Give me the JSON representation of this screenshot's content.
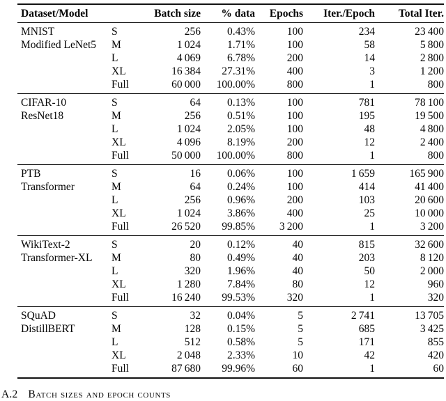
{
  "table": {
    "headers": {
      "dataset_model": "Dataset/Model",
      "batch_size": "Batch size",
      "pct_data": "% data",
      "epochs": "Epochs",
      "iter_per_epoch": "Iter./Epoch",
      "total_iter": "Total Iter."
    },
    "sections": [
      {
        "dataset": "MNIST",
        "model": "Modified LeNet5",
        "rows": [
          {
            "size": "S",
            "batch": "256",
            "pct": "0.43%",
            "epochs": "100",
            "iter": "234",
            "total": "23 400"
          },
          {
            "size": "M",
            "batch": "1 024",
            "pct": "1.71%",
            "epochs": "100",
            "iter": "58",
            "total": "5 800"
          },
          {
            "size": "L",
            "batch": "4 069",
            "pct": "6.78%",
            "epochs": "200",
            "iter": "14",
            "total": "2 800"
          },
          {
            "size": "XL",
            "batch": "16 384",
            "pct": "27.31%",
            "epochs": "400",
            "iter": "3",
            "total": "1 200"
          },
          {
            "size": "Full",
            "batch": "60 000",
            "pct": "100.00%",
            "epochs": "800",
            "iter": "1",
            "total": "800"
          }
        ]
      },
      {
        "dataset": "CIFAR-10",
        "model": "ResNet18",
        "rows": [
          {
            "size": "S",
            "batch": "64",
            "pct": "0.13%",
            "epochs": "100",
            "iter": "781",
            "total": "78 100"
          },
          {
            "size": "M",
            "batch": "256",
            "pct": "0.51%",
            "epochs": "100",
            "iter": "195",
            "total": "19 500"
          },
          {
            "size": "L",
            "batch": "1 024",
            "pct": "2.05%",
            "epochs": "100",
            "iter": "48",
            "total": "4 800"
          },
          {
            "size": "XL",
            "batch": "4 096",
            "pct": "8.19%",
            "epochs": "200",
            "iter": "12",
            "total": "2 400"
          },
          {
            "size": "Full",
            "batch": "50 000",
            "pct": "100.00%",
            "epochs": "800",
            "iter": "1",
            "total": "800"
          }
        ]
      },
      {
        "dataset": "PTB",
        "model": "Transformer",
        "rows": [
          {
            "size": "S",
            "batch": "16",
            "pct": "0.06%",
            "epochs": "100",
            "iter": "1 659",
            "total": "165 900"
          },
          {
            "size": "M",
            "batch": "64",
            "pct": "0.24%",
            "epochs": "100",
            "iter": "414",
            "total": "41 400"
          },
          {
            "size": "L",
            "batch": "256",
            "pct": "0.96%",
            "epochs": "200",
            "iter": "103",
            "total": "20 600"
          },
          {
            "size": "XL",
            "batch": "1 024",
            "pct": "3.86%",
            "epochs": "400",
            "iter": "25",
            "total": "10 000"
          },
          {
            "size": "Full",
            "batch": "26 520",
            "pct": "99.85%",
            "epochs": "3 200",
            "iter": "1",
            "total": "3 200"
          }
        ]
      },
      {
        "dataset": "WikiText-2",
        "model": "Transformer-XL",
        "rows": [
          {
            "size": "S",
            "batch": "20",
            "pct": "0.12%",
            "epochs": "40",
            "iter": "815",
            "total": "32 600"
          },
          {
            "size": "M",
            "batch": "80",
            "pct": "0.49%",
            "epochs": "40",
            "iter": "203",
            "total": "8 120"
          },
          {
            "size": "L",
            "batch": "320",
            "pct": "1.96%",
            "epochs": "40",
            "iter": "50",
            "total": "2 000"
          },
          {
            "size": "XL",
            "batch": "1 280",
            "pct": "7.84%",
            "epochs": "80",
            "iter": "12",
            "total": "960"
          },
          {
            "size": "Full",
            "batch": "16 240",
            "pct": "99.53%",
            "epochs": "320",
            "iter": "1",
            "total": "320"
          }
        ]
      },
      {
        "dataset": "SQuAD",
        "model": "DistillBERT",
        "rows": [
          {
            "size": "S",
            "batch": "32",
            "pct": "0.04%",
            "epochs": "5",
            "iter": "2 741",
            "total": "13 705"
          },
          {
            "size": "M",
            "batch": "128",
            "pct": "0.15%",
            "epochs": "5",
            "iter": "685",
            "total": "3 425"
          },
          {
            "size": "L",
            "batch": "512",
            "pct": "0.58%",
            "epochs": "5",
            "iter": "171",
            "total": "855"
          },
          {
            "size": "XL",
            "batch": "2 048",
            "pct": "2.33%",
            "epochs": "10",
            "iter": "42",
            "total": "420"
          },
          {
            "size": "Full",
            "batch": "87 680",
            "pct": "99.96%",
            "epochs": "60",
            "iter": "1",
            "total": "60"
          }
        ]
      }
    ]
  },
  "heading": {
    "number": "A.2",
    "title": "Batch sizes and epoch counts"
  }
}
